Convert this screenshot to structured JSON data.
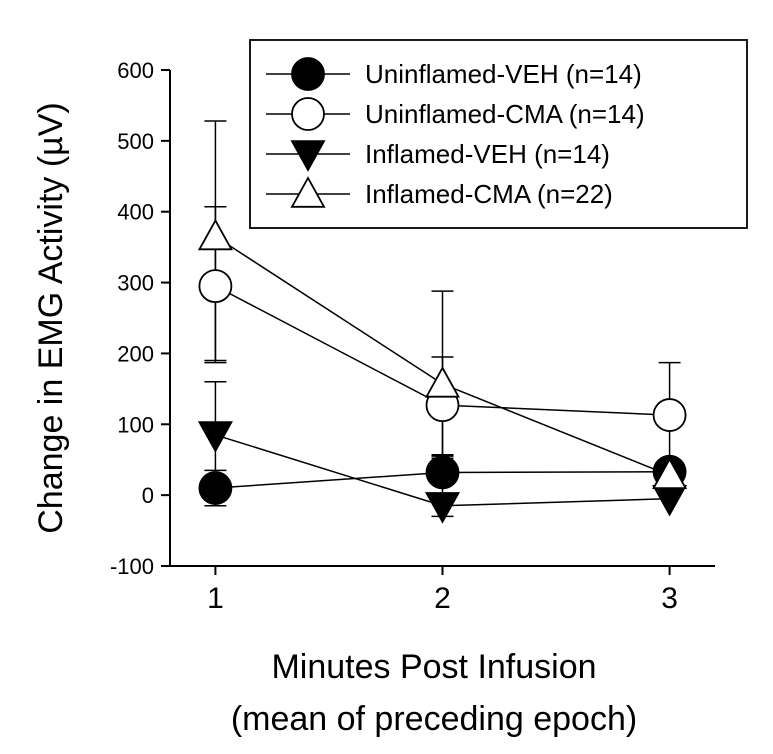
{
  "chart_data": {
    "type": "line",
    "title": "",
    "xlabel_line1": "Minutes Post Infusion",
    "xlabel_line2": "(mean of preceding epoch)",
    "ylabel": "Change in EMG Activity (µV)",
    "x": [
      1,
      2,
      3
    ],
    "x_tick_labels": [
      "1",
      "2",
      "3"
    ],
    "xlim": [
      0.8,
      3.2
    ],
    "ylim": [
      -100,
      600
    ],
    "y_ticks": [
      -100,
      0,
      100,
      200,
      300,
      400,
      500,
      600
    ],
    "y_tick_labels": [
      "-100",
      "0",
      "100",
      "200",
      "300",
      "400",
      "500",
      "600"
    ],
    "grid": false,
    "legend_position": "top-right",
    "series": [
      {
        "name": "Uninflamed-VEH (n=14)",
        "marker": "circle",
        "filled": true,
        "values": [
          10,
          32,
          33
        ],
        "err_up": [
          25,
          25,
          15
        ],
        "err_down": [
          25,
          30,
          0
        ]
      },
      {
        "name": "Uninflamed-CMA (n=14)",
        "marker": "circle",
        "filled": false,
        "values": [
          295,
          127,
          113
        ],
        "err_up": [
          112,
          68,
          74
        ],
        "err_down": [
          108,
          72,
          80
        ]
      },
      {
        "name": "Inflamed-VEH (n=14)",
        "marker": "triangle-down",
        "filled": true,
        "values": [
          85,
          -15,
          -5
        ],
        "err_up": [
          75,
          15,
          10
        ],
        "err_down": [
          75,
          15,
          0
        ]
      },
      {
        "name": "Inflamed-CMA (n=22)",
        "marker": "triangle-up",
        "filled": false,
        "values": [
          365,
          157,
          28
        ],
        "err_up": [
          163,
          131,
          10
        ],
        "err_down": [
          175,
          105,
          0
        ]
      }
    ]
  }
}
